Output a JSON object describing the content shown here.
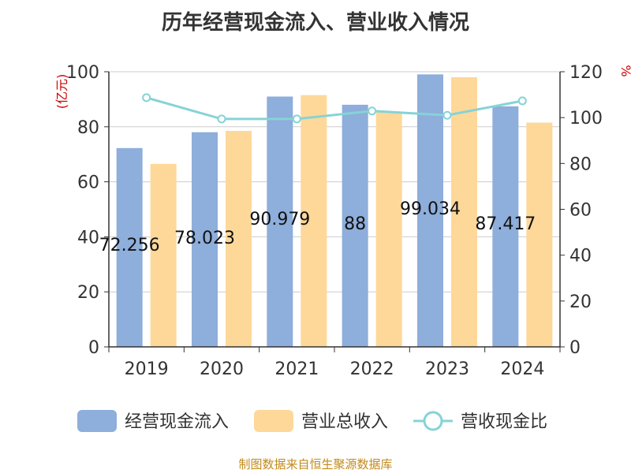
{
  "title": "历年经营现金流入、营业收入情况",
  "source": "制图数据来自恒生聚源数据库",
  "chart_data": {
    "type": "bar",
    "categories": [
      "2019",
      "2020",
      "2021",
      "2022",
      "2023",
      "2024"
    ],
    "series": [
      {
        "name": "经营现金流入",
        "type": "bar",
        "axis": "left",
        "color": "#8eaedb",
        "values": [
          72.256,
          78.023,
          90.979,
          88,
          99.034,
          87.417
        ]
      },
      {
        "name": "营业总收入",
        "type": "bar",
        "axis": "left",
        "color": "#fed899",
        "values": [
          66.5,
          78.5,
          91.5,
          85.5,
          98.0,
          81.5
        ]
      },
      {
        "name": "营收现金比",
        "type": "line",
        "axis": "right",
        "color": "#86d3d6",
        "values": [
          108.7,
          99.4,
          99.4,
          102.9,
          101.0,
          107.3
        ]
      }
    ],
    "bar_labels": [
      "72.256",
      "78.023",
      "90.979",
      "88",
      "99.034",
      "87.417"
    ],
    "left_axis": {
      "label": "(亿元)",
      "ylim": [
        0,
        100
      ],
      "ticks": [
        "0",
        "20",
        "40",
        "60",
        "80",
        "100"
      ]
    },
    "right_axis": {
      "label": "%",
      "ylim": [
        0,
        120
      ],
      "ticks": [
        "0",
        "20",
        "40",
        "60",
        "80",
        "100",
        "120"
      ]
    },
    "legend_position": "bottom",
    "grid": true
  }
}
